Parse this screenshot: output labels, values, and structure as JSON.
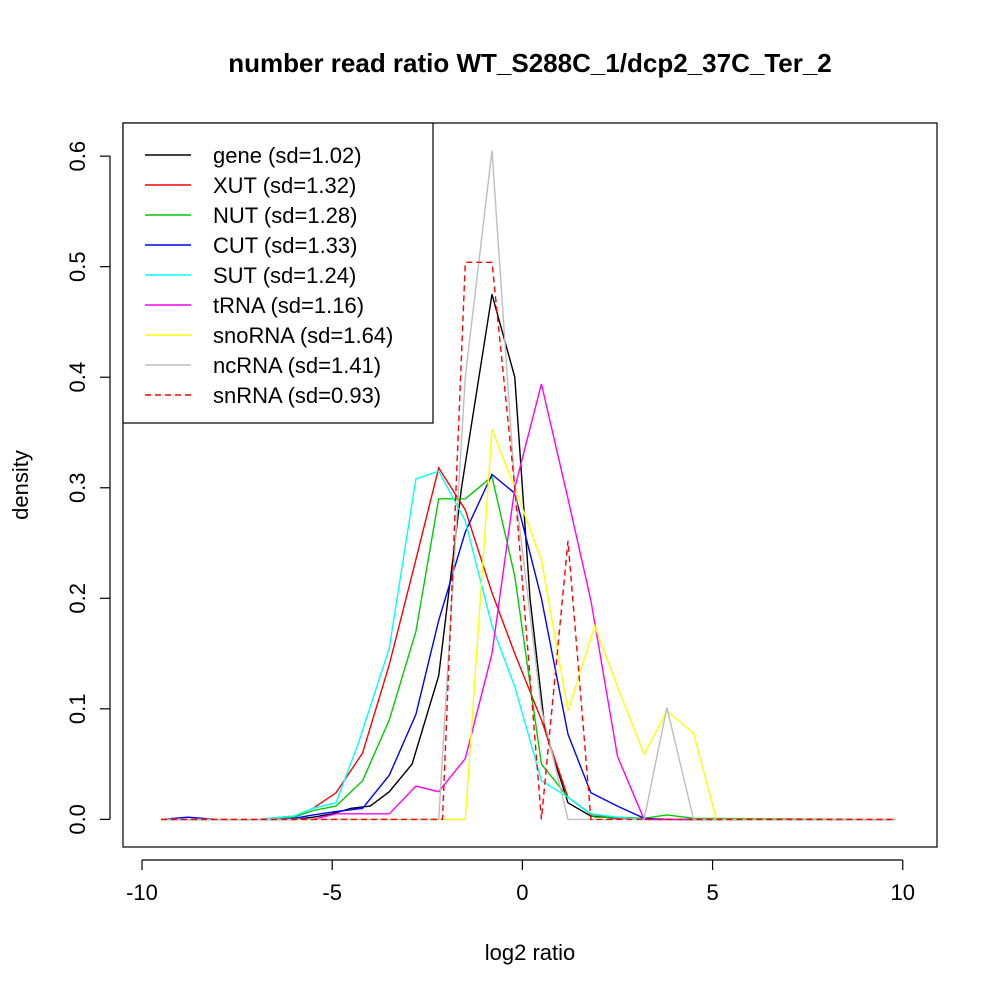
{
  "chart_data": {
    "type": "line",
    "title": "number read ratio WT_S288C_1/dcp2_37C_Ter_2",
    "xlabel": "log2 ratio",
    "ylabel": "density",
    "xlim": [
      -10.5,
      10.9
    ],
    "ylim": [
      -0.025,
      0.63
    ],
    "xticks": [
      -10,
      -5,
      0,
      5,
      10
    ],
    "xtick_labels": [
      "-10",
      "-5",
      "0",
      "5",
      "10"
    ],
    "yticks": [
      0.0,
      0.1,
      0.2,
      0.3,
      0.4,
      0.5,
      0.6
    ],
    "ytick_labels": [
      "0.0",
      "0.1",
      "0.2",
      "0.3",
      "0.4",
      "0.5",
      "0.6"
    ],
    "grid": false,
    "legend_position": "top-left",
    "series": [
      {
        "name": "gene (sd=1.02)",
        "color": "#000000",
        "dash": false,
        "points": [
          [
            -9.5,
            0
          ],
          [
            -6.0,
            0
          ],
          [
            -5.5,
            0.002
          ],
          [
            -5.0,
            0.005
          ],
          [
            -4.5,
            0.01
          ],
          [
            -4.0,
            0.012
          ],
          [
            -3.5,
            0.025
          ],
          [
            -2.9,
            0.05
          ],
          [
            -2.2,
            0.13
          ],
          [
            -1.6,
            0.3
          ],
          [
            -0.8,
            0.475
          ],
          [
            -0.2,
            0.4
          ],
          [
            0.2,
            0.2
          ],
          [
            0.6,
            0.08
          ],
          [
            1.2,
            0.015
          ],
          [
            1.8,
            0.003
          ],
          [
            2.5,
            0.001
          ],
          [
            3.5,
            0
          ],
          [
            9.8,
            0
          ]
        ]
      },
      {
        "name": "XUT (sd=1.32)",
        "color": "#ff0000",
        "dash": false,
        "points": [
          [
            -9.5,
            0
          ],
          [
            -7.0,
            0
          ],
          [
            -6.0,
            0.003
          ],
          [
            -5.5,
            0.01
          ],
          [
            -4.9,
            0.024
          ],
          [
            -4.2,
            0.06
          ],
          [
            -3.5,
            0.14
          ],
          [
            -2.8,
            0.235
          ],
          [
            -2.2,
            0.318
          ],
          [
            -1.5,
            0.28
          ],
          [
            -0.8,
            0.205
          ],
          [
            -0.2,
            0.15
          ],
          [
            0.5,
            0.09
          ],
          [
            1.2,
            0.02
          ],
          [
            1.8,
            0.005
          ],
          [
            2.5,
            0.001
          ],
          [
            3.5,
            0
          ],
          [
            9.8,
            0
          ]
        ]
      },
      {
        "name": "NUT (sd=1.28)",
        "color": "#00cc00",
        "dash": false,
        "points": [
          [
            -9.5,
            0
          ],
          [
            -7.0,
            0
          ],
          [
            -6.0,
            0.002
          ],
          [
            -5.5,
            0.008
          ],
          [
            -4.9,
            0.012
          ],
          [
            -4.2,
            0.035
          ],
          [
            -3.5,
            0.09
          ],
          [
            -2.8,
            0.17
          ],
          [
            -2.2,
            0.29
          ],
          [
            -1.5,
            0.29
          ],
          [
            -0.8,
            0.31
          ],
          [
            -0.2,
            0.22
          ],
          [
            0.5,
            0.05
          ],
          [
            1.2,
            0.02
          ],
          [
            1.9,
            0.002
          ],
          [
            2.5,
            0.002
          ],
          [
            3.2,
            0.001
          ],
          [
            3.8,
            0.004
          ],
          [
            4.5,
            0.001
          ],
          [
            9.8,
            0
          ]
        ]
      },
      {
        "name": "CUT (sd=1.33)",
        "color": "#0000ff",
        "dash": false,
        "points": [
          [
            -9.5,
            0
          ],
          [
            -8.8,
            0.002
          ],
          [
            -8.0,
            0
          ],
          [
            -6.5,
            0
          ],
          [
            -6.0,
            0.001
          ],
          [
            -5.5,
            0.004
          ],
          [
            -4.9,
            0.007
          ],
          [
            -4.2,
            0.01
          ],
          [
            -3.5,
            0.04
          ],
          [
            -2.8,
            0.095
          ],
          [
            -2.2,
            0.18
          ],
          [
            -1.5,
            0.26
          ],
          [
            -0.8,
            0.312
          ],
          [
            -0.2,
            0.295
          ],
          [
            0.5,
            0.2
          ],
          [
            1.2,
            0.077
          ],
          [
            1.8,
            0.024
          ],
          [
            2.5,
            0.012
          ],
          [
            3.2,
            0.001
          ],
          [
            4.0,
            0
          ],
          [
            9.8,
            0
          ]
        ]
      },
      {
        "name": "SUT (sd=1.24)",
        "color": "#00ffff",
        "dash": false,
        "points": [
          [
            -9.5,
            0
          ],
          [
            -7.0,
            0
          ],
          [
            -6.0,
            0.003
          ],
          [
            -5.5,
            0.01
          ],
          [
            -4.9,
            0.015
          ],
          [
            -4.3,
            0.07
          ],
          [
            -3.5,
            0.155
          ],
          [
            -2.8,
            0.308
          ],
          [
            -2.2,
            0.315
          ],
          [
            -1.5,
            0.27
          ],
          [
            -0.8,
            0.175
          ],
          [
            -0.2,
            0.12
          ],
          [
            0.5,
            0.035
          ],
          [
            1.2,
            0.02
          ],
          [
            1.8,
            0.005
          ],
          [
            2.5,
            0.002
          ],
          [
            3.2,
            0
          ],
          [
            9.8,
            0
          ]
        ]
      },
      {
        "name": "tRNA (sd=1.16)",
        "color": "#ff00ff",
        "dash": false,
        "points": [
          [
            -9.5,
            0
          ],
          [
            -5.5,
            0
          ],
          [
            -4.9,
            0.005
          ],
          [
            -4.2,
            0.005
          ],
          [
            -3.5,
            0.005
          ],
          [
            -2.8,
            0.03
          ],
          [
            -2.2,
            0.025
          ],
          [
            -1.5,
            0.055
          ],
          [
            -0.8,
            0.15
          ],
          [
            -0.2,
            0.3
          ],
          [
            0.5,
            0.394
          ],
          [
            1.2,
            0.29
          ],
          [
            1.8,
            0.198
          ],
          [
            2.5,
            0.057
          ],
          [
            3.2,
            0
          ],
          [
            9.8,
            0
          ]
        ]
      },
      {
        "name": "snoRNA (sd=1.64)",
        "color": "#ffff00",
        "dash": false,
        "points": [
          [
            -9.5,
            0
          ],
          [
            -1.5,
            0
          ],
          [
            -0.8,
            0.353
          ],
          [
            -0.2,
            0.3
          ],
          [
            0.5,
            0.235
          ],
          [
            1.2,
            0.098
          ],
          [
            1.9,
            0.175
          ],
          [
            2.5,
            0.12
          ],
          [
            3.2,
            0.059
          ],
          [
            3.8,
            0.098
          ],
          [
            4.5,
            0.078
          ],
          [
            5.1,
            0
          ],
          [
            9.8,
            0
          ]
        ]
      },
      {
        "name": "ncRNA (sd=1.41)",
        "color": "#bebebe",
        "dash": false,
        "points": [
          [
            -9.5,
            0
          ],
          [
            -2.2,
            0
          ],
          [
            -1.5,
            0.4
          ],
          [
            -0.8,
            0.605
          ],
          [
            -0.2,
            0.3
          ],
          [
            0.5,
            0.1
          ],
          [
            1.2,
            0
          ],
          [
            3.2,
            0
          ],
          [
            3.8,
            0.101
          ],
          [
            4.5,
            0
          ],
          [
            9.8,
            0
          ]
        ]
      },
      {
        "name": "snRNA (sd=0.93)",
        "color": "#ff0000",
        "dash": true,
        "points": [
          [
            -9.5,
            0
          ],
          [
            -2.1,
            0
          ],
          [
            -1.5,
            0.504
          ],
          [
            -0.8,
            0.504
          ],
          [
            -0.2,
            0.3
          ],
          [
            0.5,
            0
          ],
          [
            1.2,
            0.252
          ],
          [
            1.8,
            0
          ],
          [
            9.8,
            0
          ]
        ]
      }
    ]
  }
}
